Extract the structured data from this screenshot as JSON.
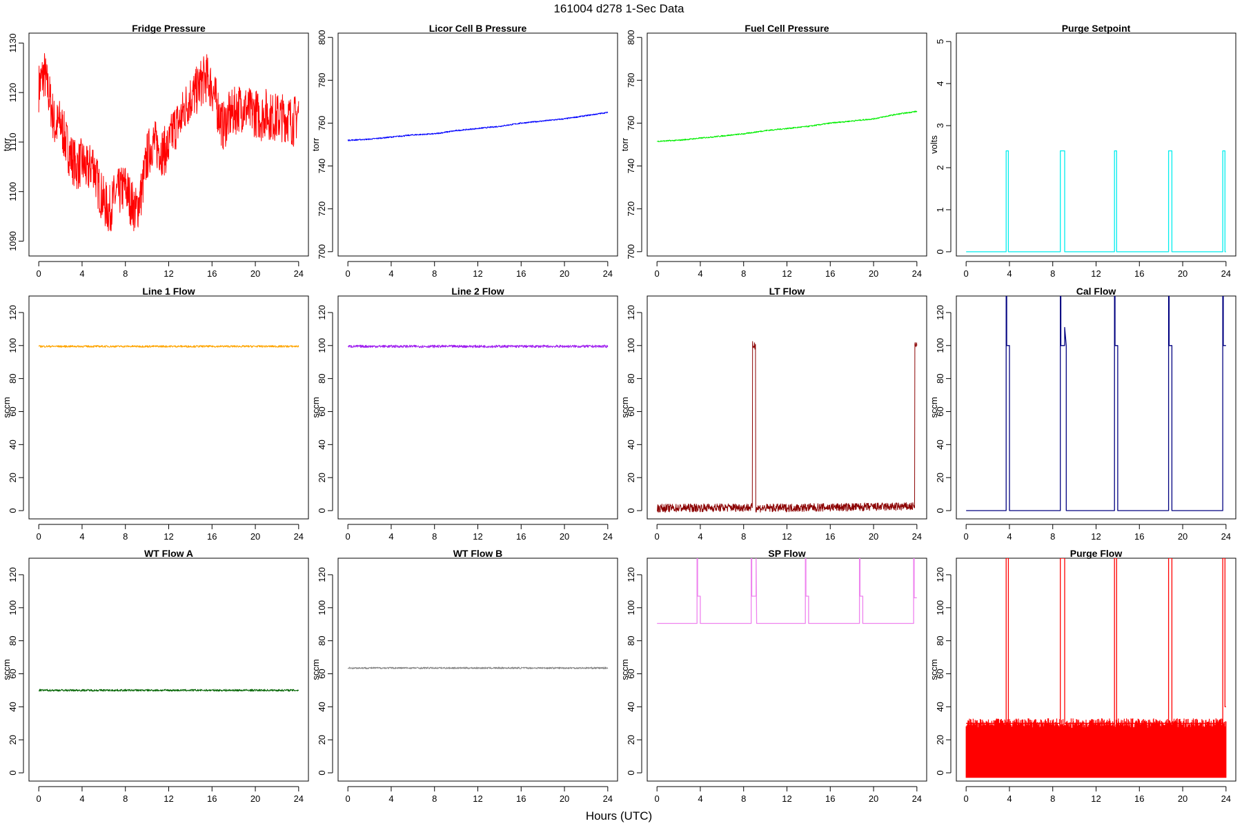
{
  "figure": {
    "title": "161004   d278   1-Sec Data",
    "xlabel": "Hours (UTC)"
  },
  "chart_data": [
    {
      "type": "line",
      "title": "Fridge Pressure",
      "ylabel": "torr",
      "color": "#ff0000",
      "xlim": [
        0,
        24
      ],
      "ylim": [
        1087,
        1132
      ],
      "xticks": [
        0,
        4,
        8,
        12,
        16,
        20,
        24
      ],
      "yticks": [
        1090,
        1100,
        1110,
        1120,
        1130
      ],
      "x": [
        0,
        0.5,
        1,
        1.5,
        2,
        2.5,
        3,
        3.5,
        4,
        4.5,
        5,
        5.5,
        6,
        6.5,
        7,
        7.5,
        8,
        8.5,
        9,
        9.5,
        10,
        10.5,
        11,
        11.5,
        12,
        12.5,
        13,
        13.5,
        14,
        14.5,
        15,
        15.5,
        16,
        16.5,
        17,
        17.5,
        18,
        18.5,
        19,
        19.5,
        20,
        20.5,
        21,
        21.5,
        22,
        22.5,
        23,
        23.5,
        24
      ],
      "y": [
        1121,
        1124,
        1119,
        1113,
        1114,
        1110,
        1107,
        1105,
        1106,
        1104,
        1106,
        1101,
        1098,
        1096,
        1099,
        1100,
        1101,
        1098,
        1096,
        1100,
        1107,
        1110,
        1109,
        1108,
        1109,
        1113,
        1114,
        1117,
        1119,
        1120,
        1122,
        1123,
        1121,
        1117,
        1113,
        1115,
        1116,
        1117,
        1117,
        1116,
        1116,
        1115,
        1116,
        1115,
        1115,
        1115,
        1115,
        1114,
        1116
      ],
      "noise": 5,
      "series_name": ""
    },
    {
      "type": "line",
      "title": "Licor Cell B Pressure",
      "ylabel": "torr",
      "color": "#0000ff",
      "xlim": [
        0,
        24
      ],
      "ylim": [
        698,
        802
      ],
      "xticks": [
        0,
        4,
        8,
        12,
        16,
        20,
        24
      ],
      "yticks": [
        700,
        720,
        740,
        760,
        780,
        800
      ],
      "x": [
        0,
        2,
        4,
        6,
        8,
        10,
        12,
        14,
        16,
        18,
        20,
        22,
        24
      ],
      "y": [
        752,
        752.5,
        753.5,
        754.5,
        755,
        756.5,
        757.5,
        758.5,
        760,
        761,
        762,
        763.5,
        765
      ],
      "noise": 0.3,
      "series_name": ""
    },
    {
      "type": "line",
      "title": "Fuel Cell Pressure",
      "ylabel": "torr",
      "color": "#00ee00",
      "xlim": [
        0,
        24
      ],
      "ylim": [
        698,
        802
      ],
      "xticks": [
        0,
        4,
        8,
        12,
        16,
        20,
        24
      ],
      "yticks": [
        700,
        720,
        740,
        760,
        780,
        800
      ],
      "x": [
        0,
        2,
        4,
        6,
        8,
        10,
        12,
        14,
        16,
        18,
        20,
        22,
        24
      ],
      "y": [
        751.5,
        752,
        753,
        754,
        755,
        756.5,
        757.5,
        758.5,
        760,
        761,
        762,
        764,
        765.5
      ],
      "noise": 0.3,
      "series_name": ""
    },
    {
      "type": "line",
      "title": "Purge Setpoint",
      "ylabel": "volts",
      "color": "#00eeee",
      "xlim": [
        0,
        24
      ],
      "ylim": [
        -0.1,
        5.2
      ],
      "xticks": [
        0,
        4,
        8,
        12,
        16,
        20,
        24
      ],
      "yticks": [
        0,
        1,
        2,
        3,
        4,
        5
      ],
      "x": [
        0,
        3.7,
        3.7,
        3.9,
        3.9,
        8.7,
        8.7,
        9.1,
        9.1,
        13.7,
        13.7,
        13.9,
        13.9,
        18.7,
        18.7,
        19.0,
        19.0,
        23.7,
        23.7,
        23.9,
        23.9,
        24
      ],
      "y": [
        0,
        0,
        2.4,
        2.4,
        0,
        0,
        2.4,
        2.4,
        0,
        0,
        2.4,
        2.4,
        0,
        0,
        2.4,
        2.4,
        0,
        0,
        2.4,
        2.4,
        0,
        0
      ],
      "noise": 0,
      "series_name": ""
    },
    {
      "type": "line",
      "title": "Line 1 Flow",
      "ylabel": "sccm",
      "color": "#ffa500",
      "xlim": [
        0,
        24
      ],
      "ylim": [
        -5,
        130
      ],
      "xticks": [
        0,
        4,
        8,
        12,
        16,
        20,
        24
      ],
      "yticks": [
        0,
        20,
        40,
        60,
        80,
        100,
        120
      ],
      "x": [
        0,
        12,
        24
      ],
      "y": [
        99.5,
        99.5,
        99.5
      ],
      "noise": 0.6,
      "series_name": ""
    },
    {
      "type": "line",
      "title": "Line 2 Flow",
      "ylabel": "sccm",
      "color": "#a020f0",
      "xlim": [
        0,
        24
      ],
      "ylim": [
        -5,
        130
      ],
      "xticks": [
        0,
        4,
        8,
        12,
        16,
        20,
        24
      ],
      "yticks": [
        0,
        20,
        40,
        60,
        80,
        100,
        120
      ],
      "x": [
        0,
        12,
        24
      ],
      "y": [
        99.5,
        99.5,
        99.5
      ],
      "noise": 0.8,
      "series_name": ""
    },
    {
      "type": "line",
      "title": "LT Flow",
      "ylabel": "sccm",
      "color": "#8b0000",
      "xlim": [
        0,
        24
      ],
      "ylim": [
        -5,
        130
      ],
      "xticks": [
        0,
        4,
        8,
        12,
        16,
        20,
        24
      ],
      "yticks": [
        0,
        20,
        40,
        60,
        80,
        100,
        120
      ],
      "x": [
        0,
        8.8,
        8.8,
        9.1,
        9.1,
        23.8,
        23.8,
        24
      ],
      "y": [
        1.5,
        2,
        100,
        100,
        1.5,
        2.5,
        100,
        100
      ],
      "noise": 2.5,
      "series_name": ""
    },
    {
      "type": "line",
      "title": "Cal Flow",
      "ylabel": "sccm",
      "color": "#000080",
      "xlim": [
        0,
        24
      ],
      "ylim": [
        -5,
        130
      ],
      "xticks": [
        0,
        4,
        8,
        12,
        16,
        20,
        24
      ],
      "yticks": [
        0,
        20,
        40,
        60,
        80,
        100,
        120
      ],
      "x": [
        0,
        3.7,
        3.7,
        3.75,
        3.75,
        4.0,
        4.0,
        8.7,
        8.7,
        8.75,
        8.75,
        9.1,
        9.1,
        9.25,
        9.25,
        13.7,
        13.7,
        13.75,
        13.75,
        14.0,
        14.0,
        18.7,
        18.7,
        18.75,
        18.75,
        19.0,
        19.0,
        23.7,
        23.7,
        23.75,
        23.75,
        24
      ],
      "y": [
        0,
        0,
        130,
        130,
        100,
        100,
        0,
        0,
        130,
        130,
        100,
        100,
        111,
        100,
        0,
        0,
        130,
        130,
        100,
        100,
        0,
        0,
        130,
        130,
        100,
        100,
        0,
        0,
        130,
        130,
        100,
        100
      ],
      "noise": 0,
      "series_name": ""
    },
    {
      "type": "line",
      "title": "WT Flow A",
      "ylabel": "sccm",
      "color": "#006400",
      "xlim": [
        0,
        24
      ],
      "ylim": [
        -5,
        130
      ],
      "xticks": [
        0,
        4,
        8,
        12,
        16,
        20,
        24
      ],
      "yticks": [
        0,
        20,
        40,
        60,
        80,
        100,
        120
      ],
      "x": [
        0,
        12,
        24
      ],
      "y": [
        50,
        50,
        50
      ],
      "noise": 0.6,
      "series_name": ""
    },
    {
      "type": "line",
      "title": "WT Flow B",
      "ylabel": "sccm",
      "color": "#808080",
      "xlim": [
        0,
        24
      ],
      "ylim": [
        -5,
        130
      ],
      "xticks": [
        0,
        4,
        8,
        12,
        16,
        20,
        24
      ],
      "yticks": [
        0,
        20,
        40,
        60,
        80,
        100,
        120
      ],
      "x": [
        0,
        12,
        24
      ],
      "y": [
        63.5,
        63.5,
        63.5
      ],
      "noise": 0.5,
      "series_name": ""
    },
    {
      "type": "line",
      "title": "SP Flow",
      "ylabel": "sccm",
      "color": "#ee82ee",
      "xlim": [
        0,
        24
      ],
      "ylim": [
        -5,
        130
      ],
      "xticks": [
        0,
        4,
        8,
        12,
        16,
        20,
        24
      ],
      "yticks": [
        0,
        20,
        40,
        60,
        80,
        100,
        120
      ],
      "x": [
        0,
        3.7,
        3.7,
        3.75,
        3.75,
        4.0,
        4.0,
        8.7,
        8.7,
        8.75,
        8.75,
        9.15,
        9.15,
        9.2,
        9.2,
        13.7,
        13.7,
        13.75,
        13.75,
        14.0,
        14.0,
        18.7,
        18.7,
        18.75,
        18.75,
        19.0,
        19.0,
        23.7,
        23.7,
        23.75,
        23.75,
        24
      ],
      "y": [
        90.5,
        90.5,
        130,
        130,
        107,
        107,
        90.5,
        90.5,
        130,
        130,
        107,
        107,
        130,
        90.5,
        90.5,
        90.5,
        130,
        130,
        107,
        107,
        90.5,
        90.5,
        130,
        130,
        107,
        107,
        90.5,
        90.5,
        130,
        130,
        106,
        106
      ],
      "noise": 0,
      "series_name": ""
    },
    {
      "type": "line",
      "title": "Purge Flow",
      "ylabel": "sccm",
      "color": "#ff0000",
      "xlim": [
        0,
        24
      ],
      "ylim": [
        -5,
        130
      ],
      "xticks": [
        0,
        4,
        8,
        12,
        16,
        20,
        24
      ],
      "yticks": [
        0,
        20,
        40,
        60,
        80,
        100,
        120
      ],
      "x": [
        0,
        3.7,
        3.7,
        3.9,
        3.9,
        8.7,
        8.7,
        9.1,
        9.1,
        13.7,
        13.7,
        13.9,
        13.9,
        18.7,
        18.7,
        19.0,
        19.0,
        23.7,
        23.7,
        23.9,
        23.9,
        24
      ],
      "y": [
        30,
        30,
        130,
        130,
        30,
        30,
        130,
        130,
        30,
        30,
        130,
        130,
        30,
        30,
        130,
        130,
        30,
        30,
        130,
        130,
        40,
        40
      ],
      "noise": 0,
      "band": [
        -3,
        33
      ],
      "series_name": ""
    }
  ]
}
